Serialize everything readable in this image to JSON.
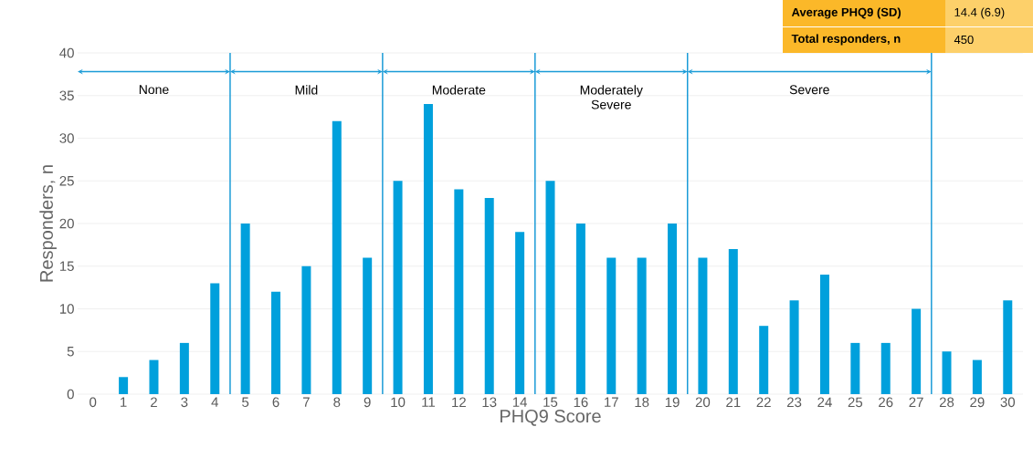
{
  "chart_data": {
    "type": "bar",
    "xlabel": "PHQ9 Score",
    "ylabel": "Responders, n",
    "x": [
      0,
      1,
      2,
      3,
      4,
      5,
      6,
      7,
      8,
      9,
      10,
      11,
      12,
      13,
      14,
      15,
      16,
      17,
      18,
      19,
      20,
      21,
      22,
      23,
      24,
      25,
      26,
      27,
      28,
      29,
      30
    ],
    "xlim": [
      -0.5,
      30.5
    ],
    "xticks": [
      0,
      1,
      2,
      3,
      4,
      5,
      6,
      7,
      8,
      9,
      10,
      11,
      12,
      13,
      14,
      15,
      16,
      17,
      18,
      19,
      20,
      21,
      22,
      23,
      24,
      25,
      26,
      27,
      28,
      29,
      30
    ],
    "values": [
      0,
      2,
      4,
      6,
      13,
      20,
      12,
      15,
      32,
      16,
      25,
      34,
      24,
      23,
      19,
      25,
      20,
      16,
      16,
      20,
      16,
      17,
      8,
      11,
      14,
      6,
      6,
      10,
      5,
      4,
      11
    ],
    "color": "#00a0dc",
    "ylim": [
      0,
      40
    ],
    "yticks": [
      0,
      5,
      10,
      15,
      20,
      25,
      30,
      35,
      40
    ],
    "grid": "y",
    "ref_lines": [
      {
        "axis": "x",
        "value": 4.5,
        "color": "#1a9bd7"
      },
      {
        "axis": "x",
        "value": 9.5,
        "color": "#1a9bd7"
      },
      {
        "axis": "x",
        "value": 14.5,
        "color": "#1a9bd7"
      },
      {
        "axis": "x",
        "value": 19.5,
        "color": "#1a9bd7"
      },
      {
        "axis": "x",
        "value": 27.5,
        "color": "#1a9bd7"
      }
    ],
    "annotations": [
      "Average PHQ9 (SD)",
      "14.4 (6.9)",
      "Total responders, n",
      "450",
      "None",
      "Mild",
      "Moderate",
      "Moderately Severe",
      "Severe"
    ]
  }
}
